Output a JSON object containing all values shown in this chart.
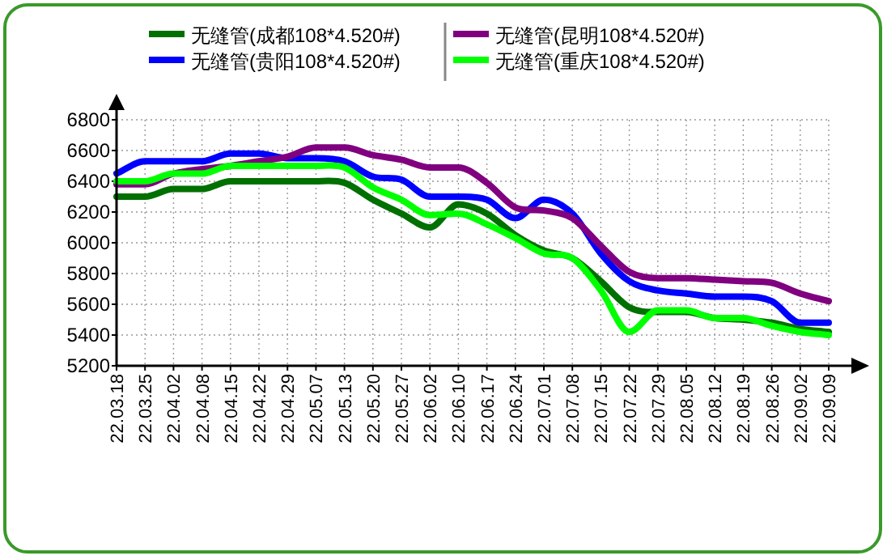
{
  "chart_data": {
    "type": "line",
    "categories": [
      "22.03.18",
      "22.03.25",
      "22.04.02",
      "22.04.08",
      "22.04.15",
      "22.04.22",
      "22.04.29",
      "22.05.07",
      "22.05.13",
      "22.05.20",
      "22.05.27",
      "22.06.02",
      "22.06.10",
      "22.06.17",
      "22.06.24",
      "22.07.01",
      "22.07.08",
      "22.07.15",
      "22.07.22",
      "22.07.29",
      "22.08.05",
      "22.08.12",
      "22.08.19",
      "22.08.26",
      "22.09.02",
      "22.09.09"
    ],
    "series": [
      {
        "name": "无缝管(成都108*4.520#)",
        "color": "#007000",
        "values": [
          6300,
          6300,
          6350,
          6350,
          6400,
          6400,
          6400,
          6400,
          6390,
          6280,
          6190,
          6100,
          6250,
          6190,
          6050,
          5950,
          5900,
          5750,
          5580,
          5550,
          5550,
          5510,
          5500,
          5480,
          5440,
          5420
        ]
      },
      {
        "name": "无缝管(贵阳108*4.520#)",
        "color": "#0000ff",
        "values": [
          6450,
          6530,
          6530,
          6530,
          6580,
          6580,
          6550,
          6550,
          6530,
          6430,
          6410,
          6300,
          6300,
          6280,
          6160,
          6280,
          6190,
          5930,
          5750,
          5690,
          5670,
          5650,
          5650,
          5620,
          5480,
          5480
        ]
      },
      {
        "name": "无缝管(昆明108*4.520#)",
        "color": "#800080",
        "values": [
          6380,
          6380,
          6450,
          null,
          6500,
          6530,
          6560,
          6620,
          6620,
          6570,
          6540,
          6490,
          6490,
          6390,
          6230,
          6210,
          6160,
          5980,
          5810,
          5770,
          5770,
          5760,
          5750,
          5740,
          5670,
          5620
        ]
      },
      {
        "name": "无缝管(重庆108*4.520#)",
        "color": "#00ff00",
        "values": [
          6400,
          6400,
          6450,
          6450,
          6500,
          6500,
          6500,
          6500,
          6490,
          6360,
          6280,
          6180,
          6190,
          6120,
          6030,
          5930,
          5900,
          5690,
          5420,
          5560,
          5560,
          5510,
          5510,
          5460,
          5420,
          5400
        ]
      }
    ],
    "ylim": [
      5200,
      6800
    ],
    "yticks": [
      5200,
      5400,
      5600,
      5800,
      6000,
      6200,
      6400,
      6600,
      6800
    ],
    "grid": true,
    "legend": "top"
  }
}
